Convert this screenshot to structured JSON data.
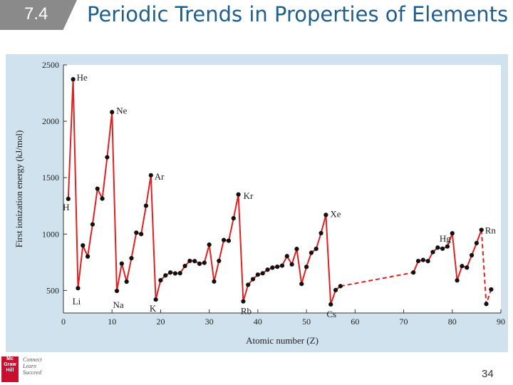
{
  "slide": {
    "section_number": "7.4",
    "title": "Periodic Trends in Properties of Elements",
    "page_number": "34",
    "logo_lines": [
      "Mc",
      "Graw",
      "Hill"
    ],
    "tagline_lines": [
      "Connect",
      "Learn",
      "Succeed"
    ]
  },
  "colors": {
    "accent": "#1f5f8b",
    "series_line": "#e02020",
    "marker": "#111111",
    "panel": "#cfe2ee",
    "plot_bg": "#ffffff"
  },
  "chart_data": {
    "type": "line",
    "title": "",
    "xlabel": "Atomic number (Z)",
    "ylabel": "First ionization energy (kJ/mol)",
    "xlim": [
      0,
      90
    ],
    "ylim": [
      300,
      2500
    ],
    "xticks": [
      0,
      10,
      20,
      30,
      40,
      50,
      60,
      70,
      80,
      90
    ],
    "yticks": [
      500,
      1000,
      1500,
      2000,
      2500
    ],
    "grid": false,
    "series": [
      {
        "style": "solid",
        "points": [
          [
            1,
            1312
          ],
          [
            2,
            2372
          ],
          [
            3,
            520
          ],
          [
            4,
            899
          ],
          [
            5,
            801
          ],
          [
            6,
            1086
          ],
          [
            7,
            1402
          ],
          [
            8,
            1314
          ],
          [
            9,
            1681
          ],
          [
            10,
            2081
          ],
          [
            11,
            496
          ],
          [
            12,
            738
          ],
          [
            13,
            578
          ],
          [
            14,
            786
          ],
          [
            15,
            1012
          ],
          [
            16,
            1000
          ],
          [
            17,
            1251
          ],
          [
            18,
            1521
          ],
          [
            19,
            419
          ],
          [
            20,
            590
          ],
          [
            21,
            633
          ],
          [
            22,
            659
          ],
          [
            23,
            651
          ],
          [
            24,
            653
          ],
          [
            25,
            717
          ],
          [
            26,
            762
          ],
          [
            27,
            760
          ],
          [
            28,
            737
          ],
          [
            29,
            745
          ],
          [
            30,
            906
          ],
          [
            31,
            579
          ],
          [
            32,
            762
          ],
          [
            33,
            947
          ],
          [
            34,
            941
          ],
          [
            35,
            1140
          ],
          [
            36,
            1351
          ],
          [
            37,
            403
          ],
          [
            38,
            550
          ],
          [
            39,
            600
          ],
          [
            40,
            640
          ],
          [
            41,
            652
          ],
          [
            42,
            684
          ],
          [
            43,
            702
          ],
          [
            44,
            710
          ],
          [
            45,
            720
          ],
          [
            46,
            804
          ],
          [
            47,
            731
          ],
          [
            48,
            868
          ],
          [
            49,
            558
          ],
          [
            50,
            709
          ],
          [
            51,
            834
          ],
          [
            52,
            869
          ],
          [
            53,
            1008
          ],
          [
            54,
            1170
          ],
          [
            55,
            376
          ],
          [
            56,
            503
          ],
          [
            57,
            538
          ]
        ]
      },
      {
        "style": "dashed",
        "points": [
          [
            57,
            538
          ],
          [
            72,
            659
          ]
        ]
      },
      {
        "style": "solid",
        "points": [
          [
            72,
            659
          ],
          [
            73,
            761
          ],
          [
            74,
            770
          ],
          [
            75,
            760
          ],
          [
            76,
            840
          ],
          [
            77,
            880
          ],
          [
            78,
            870
          ],
          [
            79,
            890
          ],
          [
            80,
            1007
          ],
          [
            81,
            589
          ],
          [
            82,
            716
          ],
          [
            83,
            703
          ],
          [
            84,
            812
          ],
          [
            85,
            920
          ],
          [
            86,
            1037
          ]
        ]
      },
      {
        "style": "dashed",
        "points": [
          [
            86,
            1037
          ],
          [
            87,
            380
          ],
          [
            88,
            509
          ]
        ]
      }
    ],
    "annotations": [
      {
        "label": "He",
        "x": 2,
        "y": 2372
      },
      {
        "label": "Ne",
        "x": 10,
        "y": 2081
      },
      {
        "label": "Ar",
        "x": 18,
        "y": 1521
      },
      {
        "label": "Kr",
        "x": 36,
        "y": 1351
      },
      {
        "label": "Xe",
        "x": 54,
        "y": 1170
      },
      {
        "label": "Hg",
        "x": 80,
        "y": 1007
      },
      {
        "label": "Rn",
        "x": 86,
        "y": 1037
      },
      {
        "label": "H",
        "x": 1,
        "y": 1312
      },
      {
        "label": "Li",
        "x": 3,
        "y": 520
      },
      {
        "label": "Na",
        "x": 11,
        "y": 496
      },
      {
        "label": "K",
        "x": 19,
        "y": 419
      },
      {
        "label": "Rb",
        "x": 37,
        "y": 403
      },
      {
        "label": "Cs",
        "x": 55,
        "y": 376
      }
    ]
  }
}
